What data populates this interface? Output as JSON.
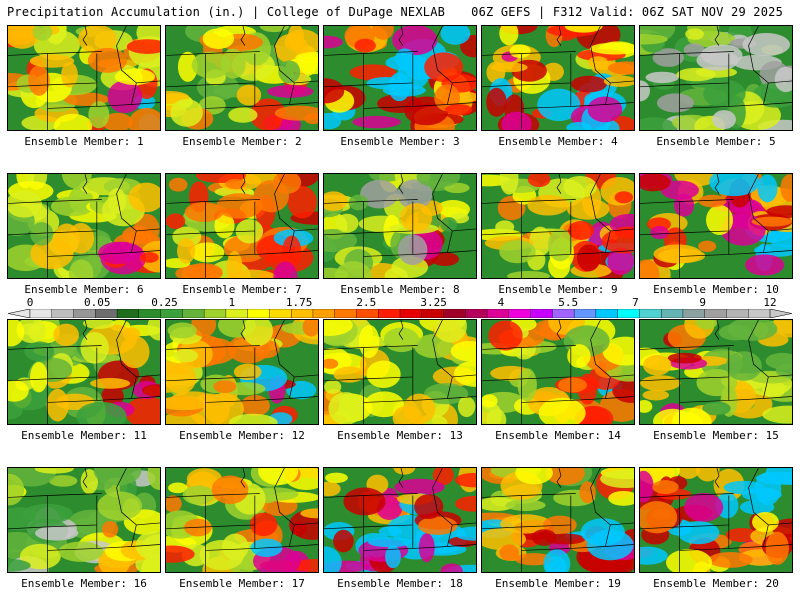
{
  "header": {
    "title": "Precipitation Accumulation (in.) | College of DuPage NEXLAB",
    "valid": "06Z GEFS | F312 Valid: 06Z SAT NOV 29 2025"
  },
  "panels": [
    {
      "label": "Ensemble Member: 1",
      "wetness": 0.55,
      "cluster": "se"
    },
    {
      "label": "Ensemble Member: 2",
      "wetness": 0.5,
      "cluster": "se"
    },
    {
      "label": "Ensemble Member: 3",
      "wetness": 0.75,
      "cluster": "band"
    },
    {
      "label": "Ensemble Member: 4",
      "wetness": 0.7,
      "cluster": "s"
    },
    {
      "label": "Ensemble Member: 5",
      "wetness": 0.25,
      "cluster": "none"
    },
    {
      "label": "Ensemble Member: 6",
      "wetness": 0.45,
      "cluster": "se"
    },
    {
      "label": "Ensemble Member: 7",
      "wetness": 0.6,
      "cluster": "e"
    },
    {
      "label": "Ensemble Member: 8",
      "wetness": 0.4,
      "cluster": "se"
    },
    {
      "label": "Ensemble Member: 9",
      "wetness": 0.55,
      "cluster": "e"
    },
    {
      "label": "Ensemble Member: 10",
      "wetness": 0.8,
      "cluster": "se"
    },
    {
      "label": "Ensemble Member: 11",
      "wetness": 0.45,
      "cluster": "se"
    },
    {
      "label": "Ensemble Member: 12",
      "wetness": 0.55,
      "cluster": "se"
    },
    {
      "label": "Ensemble Member: 13",
      "wetness": 0.5,
      "cluster": "none"
    },
    {
      "label": "Ensemble Member: 14",
      "wetness": 0.55,
      "cluster": "se"
    },
    {
      "label": "Ensemble Member: 15",
      "wetness": 0.45,
      "cluster": "w"
    },
    {
      "label": "Ensemble Member: 16",
      "wetness": 0.3,
      "cluster": "se"
    },
    {
      "label": "Ensemble Member: 17",
      "wetness": 0.55,
      "cluster": "se"
    },
    {
      "label": "Ensemble Member: 18",
      "wetness": 0.8,
      "cluster": "s"
    },
    {
      "label": "Ensemble Member: 19",
      "wetness": 0.55,
      "cluster": "s"
    },
    {
      "label": "Ensemble Member: 20",
      "wetness": 0.75,
      "cluster": "band"
    }
  ],
  "colorbar": {
    "labels": [
      "0",
      "0.05",
      "0.25",
      "1",
      "1.75",
      "2.5",
      "3.25",
      "4",
      "5.5",
      "7",
      "9",
      "12"
    ],
    "colors": [
      "#e6e6e6",
      "#bebebe",
      "#969696",
      "#6e6e6e",
      "#1e6e1e",
      "#2d8c2d",
      "#3ca03c",
      "#64b43c",
      "#a0d22d",
      "#dcf01e",
      "#ffff00",
      "#ffdc00",
      "#ffbe00",
      "#ffa000",
      "#ff7800",
      "#ff5000",
      "#ff1e00",
      "#e60000",
      "#c80000",
      "#a00028",
      "#b4005a",
      "#dc0096",
      "#f000dc",
      "#c800ff",
      "#a064ff",
      "#6496ff",
      "#00c8ff",
      "#00ffff",
      "#50d2d2",
      "#64b4b4",
      "#8ca0a0",
      "#a0a0a0",
      "#b4b4b4",
      "#c8c8c8"
    ]
  }
}
